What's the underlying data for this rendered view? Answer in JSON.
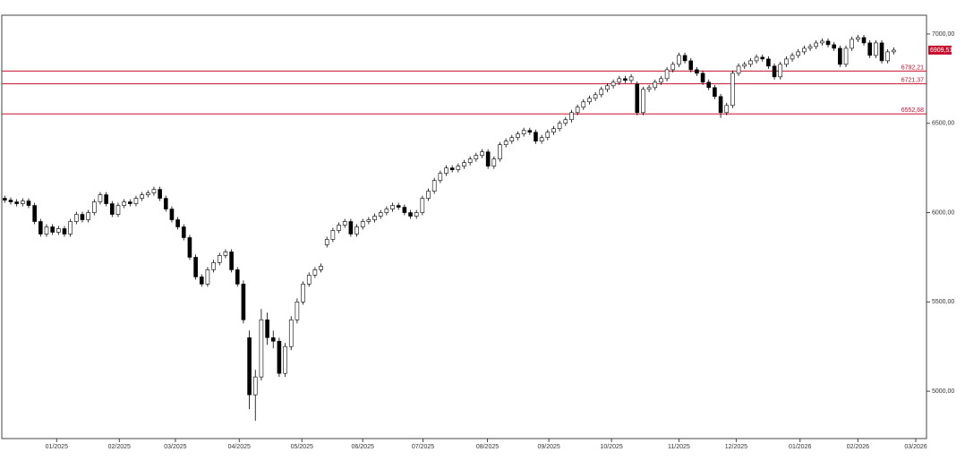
{
  "chart_data": {
    "type": "candlestick",
    "open": [
      6080,
      6070,
      6060,
      6050,
      6065,
      6040,
      5950,
      5880,
      5920,
      5890,
      5910,
      5880,
      5950,
      5990,
      5960,
      6000,
      6060,
      6100,
      6050,
      5990,
      6040,
      6060,
      6050,
      6080,
      6100,
      6110,
      6130,
      6080,
      6020,
      5960,
      5920,
      5860,
      5750,
      5640,
      5600,
      5680,
      5720,
      5760,
      5780,
      5680,
      5600,
      5300,
      4980,
      5080,
      5400,
      5300,
      5280,
      5100,
      5250,
      5400,
      5500,
      5600,
      5650,
      5680,
      5820,
      5850,
      5900,
      5930,
      5950,
      5880,
      5920,
      5950,
      5960,
      5980,
      6000,
      6020,
      6040,
      6030,
      6000,
      5980,
      6000,
      6080,
      6120,
      6180,
      6220,
      6250,
      6240,
      6260,
      6280,
      6300,
      6320,
      6340,
      6260,
      6300,
      6380,
      6400,
      6420,
      6440,
      6460,
      6450,
      6400,
      6420,
      6450,
      6470,
      6500,
      6520,
      6560,
      6590,
      6620,
      6640,
      6660,
      6690,
      6710,
      6730,
      6750,
      6740,
      6720,
      6560,
      6690,
      6700,
      6730,
      6750,
      6800,
      6830,
      6880,
      6850,
      6800,
      6780,
      6730,
      6700,
      6650,
      6560,
      6600,
      6780,
      6820,
      6830,
      6850,
      6870,
      6860,
      6820,
      6760,
      6830,
      6860,
      6880,
      6900,
      6920,
      6930,
      6950,
      6960,
      6940,
      6920,
      6830,
      6920,
      6970,
      6980,
      6950,
      6880,
      6950,
      6850,
      6900
    ],
    "high": [
      6095,
      6085,
      6075,
      6080,
      6080,
      6055,
      5965,
      5935,
      5935,
      5925,
      5925,
      5965,
      6005,
      6005,
      6015,
      6075,
      6115,
      6115,
      6065,
      6055,
      6075,
      6075,
      6095,
      6115,
      6125,
      6145,
      6145,
      6095,
      6035,
      5975,
      5935,
      5875,
      5765,
      5655,
      5695,
      5735,
      5775,
      5795,
      5795,
      5695,
      5620,
      5340,
      5120,
      5460,
      5440,
      5340,
      5300,
      5270,
      5420,
      5520,
      5615,
      5665,
      5695,
      5715,
      5865,
      5915,
      5945,
      5965,
      5965,
      5935,
      5965,
      5975,
      5995,
      6015,
      6035,
      6055,
      6055,
      6045,
      6015,
      6015,
      6095,
      6135,
      6195,
      6235,
      6265,
      6265,
      6275,
      6295,
      6315,
      6335,
      6355,
      6355,
      6315,
      6395,
      6415,
      6435,
      6455,
      6475,
      6475,
      6465,
      6435,
      6465,
      6485,
      6515,
      6535,
      6575,
      6605,
      6635,
      6655,
      6675,
      6705,
      6725,
      6745,
      6765,
      6765,
      6775,
      6735,
      6705,
      6715,
      6745,
      6765,
      6815,
      6845,
      6895,
      6895,
      6865,
      6815,
      6795,
      6745,
      6715,
      6665,
      6615,
      6795,
      6835,
      6845,
      6865,
      6885,
      6885,
      6875,
      6835,
      6845,
      6875,
      6895,
      6915,
      6935,
      6945,
      6965,
      6975,
      6975,
      6955,
      6935,
      6935,
      6985,
      6995,
      6995,
      6965,
      6965,
      6965,
      6915,
      6925
    ],
    "low": [
      6055,
      6045,
      6035,
      6035,
      6025,
      5935,
      5865,
      5865,
      5875,
      5875,
      5865,
      5865,
      5935,
      5945,
      5945,
      5985,
      6045,
      6035,
      5975,
      5975,
      6025,
      6035,
      6035,
      6065,
      6085,
      6095,
      6065,
      6005,
      5945,
      5905,
      5845,
      5735,
      5625,
      5585,
      5585,
      5665,
      5705,
      5745,
      5665,
      5585,
      5380,
      4900,
      4835,
      5060,
      5260,
      5240,
      5080,
      5080,
      5230,
      5380,
      5485,
      5585,
      5635,
      5665,
      5805,
      5835,
      5885,
      5915,
      5865,
      5865,
      5905,
      5935,
      5945,
      5965,
      5985,
      6005,
      6015,
      5985,
      5965,
      5965,
      5985,
      6065,
      6105,
      6165,
      6205,
      6225,
      6225,
      6245,
      6265,
      6285,
      6305,
      6245,
      6245,
      6285,
      6365,
      6385,
      6405,
      6425,
      6435,
      6385,
      6385,
      6405,
      6435,
      6455,
      6485,
      6505,
      6545,
      6575,
      6605,
      6625,
      6645,
      6675,
      6695,
      6715,
      6725,
      6725,
      6545,
      6545,
      6675,
      6685,
      6715,
      6735,
      6785,
      6815,
      6835,
      6785,
      6765,
      6715,
      6685,
      6635,
      6530,
      6545,
      6585,
      6765,
      6805,
      6815,
      6835,
      6845,
      6805,
      6745,
      6745,
      6815,
      6845,
      6865,
      6885,
      6905,
      6915,
      6935,
      6925,
      6905,
      6815,
      6815,
      6905,
      6955,
      6935,
      6865,
      6865,
      6835,
      6835,
      6885
    ],
    "close": [
      6070,
      6060,
      6050,
      6065,
      6040,
      5950,
      5880,
      5920,
      5890,
      5910,
      5880,
      5950,
      5990,
      5960,
      6000,
      6060,
      6100,
      6050,
      5990,
      6040,
      6060,
      6050,
      6080,
      6100,
      6110,
      6130,
      6080,
      6020,
      5960,
      5920,
      5860,
      5750,
      5640,
      5600,
      5680,
      5720,
      5760,
      5780,
      5680,
      5600,
      5400,
      4980,
      5080,
      5400,
      5300,
      5280,
      5100,
      5250,
      5400,
      5500,
      5600,
      5650,
      5680,
      5700,
      5850,
      5900,
      5930,
      5950,
      5880,
      5920,
      5950,
      5960,
      5980,
      6000,
      6020,
      6040,
      6030,
      6000,
      5980,
      6000,
      6080,
      6120,
      6180,
      6220,
      6250,
      6240,
      6260,
      6280,
      6300,
      6320,
      6340,
      6260,
      6300,
      6380,
      6400,
      6420,
      6440,
      6460,
      6450,
      6400,
      6420,
      6450,
      6470,
      6500,
      6520,
      6560,
      6590,
      6620,
      6640,
      6660,
      6690,
      6710,
      6730,
      6750,
      6740,
      6760,
      6560,
      6690,
      6700,
      6730,
      6750,
      6800,
      6830,
      6880,
      6850,
      6800,
      6780,
      6730,
      6700,
      6650,
      6560,
      6600,
      6780,
      6820,
      6830,
      6850,
      6870,
      6860,
      6820,
      6760,
      6830,
      6860,
      6880,
      6900,
      6920,
      6930,
      6950,
      6960,
      6940,
      6920,
      6830,
      6920,
      6970,
      6980,
      6950,
      6880,
      6950,
      6850,
      6900,
      6909.51
    ],
    "up_color": "#ffffff",
    "down_color": "#000000",
    "xlim": [
      0,
      155
    ],
    "xticks": [
      {
        "value": 9.2,
        "label": "01/2025"
      },
      {
        "value": 19.7,
        "label": "02/2025"
      },
      {
        "value": 29.1,
        "label": "03/2025"
      },
      {
        "value": 39.8,
        "label": "04/2025"
      },
      {
        "value": 50.3,
        "label": "05/2025"
      },
      {
        "value": 60.5,
        "label": "06/2025"
      },
      {
        "value": 70.6,
        "label": "07/2025"
      },
      {
        "value": 81.4,
        "label": "08/2025"
      },
      {
        "value": 91.7,
        "label": "09/2025"
      },
      {
        "value": 102.2,
        "label": "10/2025"
      },
      {
        "value": 113.5,
        "label": "11/2025"
      },
      {
        "value": 123.1,
        "label": "12/2025"
      },
      {
        "value": 133.8,
        "label": "01/2026"
      },
      {
        "value": 143.5,
        "label": "02/2026"
      },
      {
        "value": 153.2,
        "label": "03/2026"
      }
    ],
    "ylim": [
      4735,
      7105
    ],
    "yticks": [
      {
        "value": 5000,
        "label": "5000,00"
      },
      {
        "value": 5500,
        "label": "5500,00"
      },
      {
        "value": 6000,
        "label": "6000,00"
      },
      {
        "value": 6500,
        "label": "6500,00"
      },
      {
        "value": 7000,
        "label": "7000,00"
      }
    ],
    "hlines": [
      {
        "value": 6792.21,
        "label": "6792,21"
      },
      {
        "value": 6721.37,
        "label": "6721,37"
      },
      {
        "value": 6552.68,
        "label": "6552,68"
      }
    ],
    "hline_color": "#c8102e",
    "last_price": {
      "value": 6909.51,
      "label": "6909,51"
    }
  }
}
